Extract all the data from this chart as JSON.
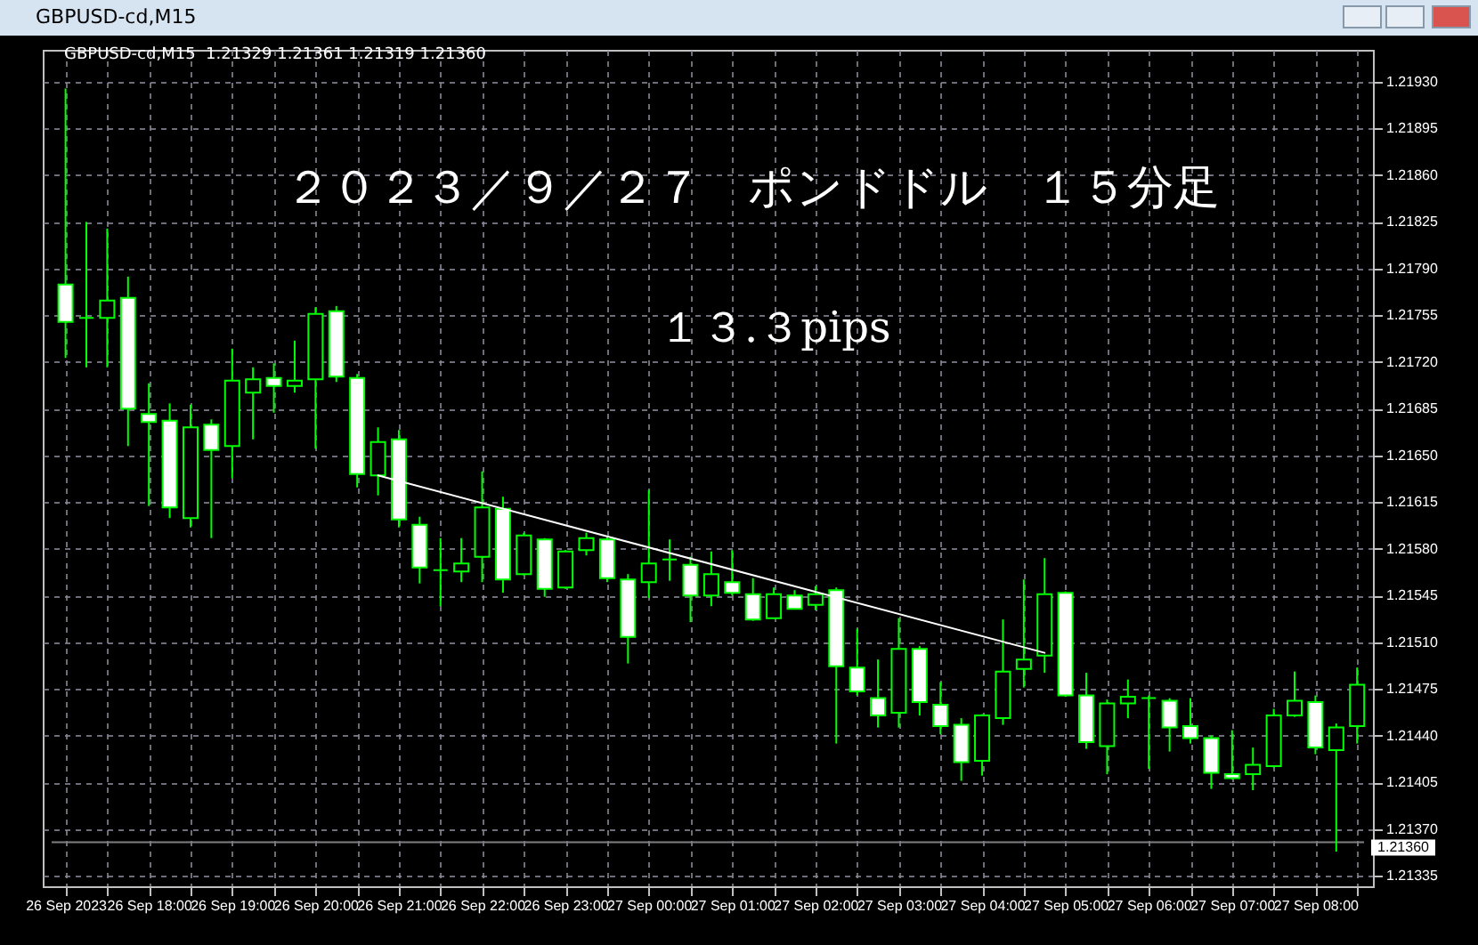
{
  "chart_data": {
    "type": "candlestick",
    "title": "GBPUSD-cd,M15",
    "annotations": [
      "GBPUSD-cd,M15  1.21329 1.21361 1.21319 1.21360",
      "２０２３／９／２７　ポンドドル　１５分足",
      "１３.３pips"
    ],
    "x": [
      "2023-09-26T17:00",
      "2023-09-26T17:15",
      "2023-09-26T17:30",
      "2023-09-26T17:45",
      "2023-09-26T18:00",
      "2023-09-26T18:15",
      "2023-09-26T18:30",
      "2023-09-26T18:45",
      "2023-09-26T19:00",
      "2023-09-26T19:15",
      "2023-09-26T19:30",
      "2023-09-26T19:45",
      "2023-09-26T20:00",
      "2023-09-26T20:15",
      "2023-09-26T20:30",
      "2023-09-26T20:45",
      "2023-09-26T21:00",
      "2023-09-26T21:15",
      "2023-09-26T21:30",
      "2023-09-26T21:45",
      "2023-09-26T22:00",
      "2023-09-26T22:15",
      "2023-09-26T22:30",
      "2023-09-26T22:45",
      "2023-09-26T23:00",
      "2023-09-26T23:15",
      "2023-09-26T23:30",
      "2023-09-26T23:45",
      "2023-09-27T00:00",
      "2023-09-27T00:15",
      "2023-09-27T00:30",
      "2023-09-27T00:45",
      "2023-09-27T01:00",
      "2023-09-27T01:15",
      "2023-09-27T01:30",
      "2023-09-27T01:45",
      "2023-09-27T02:00",
      "2023-09-27T02:15",
      "2023-09-27T02:30",
      "2023-09-27T02:45",
      "2023-09-27T03:00",
      "2023-09-27T03:15",
      "2023-09-27T03:30",
      "2023-09-27T03:45",
      "2023-09-27T04:00",
      "2023-09-27T04:15",
      "2023-09-27T04:30",
      "2023-09-27T04:45",
      "2023-09-27T05:00",
      "2023-09-27T05:15",
      "2023-09-27T05:30",
      "2023-09-27T05:45",
      "2023-09-27T06:00",
      "2023-09-27T06:15",
      "2023-09-27T06:30",
      "2023-09-27T06:45",
      "2023-09-27T07:00",
      "2023-09-27T07:15",
      "2023-09-27T07:30",
      "2023-09-27T07:45",
      "2023-09-27T08:00",
      "2023-09-27T08:15",
      "2023-09-27T08:30"
    ],
    "series": [
      {
        "type": "candlestick",
        "color": "#00ff00",
        "ohlc": [
          [
            1.21778,
            1.21925,
            1.21723,
            1.2175
          ],
          [
            1.21753,
            1.21825,
            1.21716,
            1.21753
          ],
          [
            1.21753,
            1.2182,
            1.21716,
            1.21766
          ],
          [
            1.21768,
            1.21784,
            1.21657,
            1.21685
          ],
          [
            1.21681,
            1.21704,
            1.21612,
            1.21675
          ],
          [
            1.21676,
            1.21689,
            1.21603,
            1.21611
          ],
          [
            1.21603,
            1.21688,
            1.21596,
            1.21671
          ],
          [
            1.21673,
            1.21677,
            1.21588,
            1.21654
          ],
          [
            1.21657,
            1.2173,
            1.21633,
            1.21706
          ],
          [
            1.21697,
            1.21716,
            1.21662,
            1.21707
          ],
          [
            1.21708,
            1.21719,
            1.21682,
            1.21702
          ],
          [
            1.21702,
            1.21736,
            1.21697,
            1.21706
          ],
          [
            1.21707,
            1.21761,
            1.21655,
            1.21756
          ],
          [
            1.21758,
            1.21762,
            1.21705,
            1.21709
          ],
          [
            1.21708,
            1.21711,
            1.21626,
            1.21636
          ],
          [
            1.21635,
            1.21671,
            1.2162,
            1.2166
          ],
          [
            1.21662,
            1.21669,
            1.21596,
            1.21602
          ],
          [
            1.21598,
            1.21604,
            1.21554,
            1.21566
          ],
          [
            1.21564,
            1.21588,
            1.21537,
            1.21564
          ],
          [
            1.21563,
            1.21588,
            1.21555,
            1.21569
          ],
          [
            1.21574,
            1.21638,
            1.21555,
            1.21611
          ],
          [
            1.2161,
            1.21619,
            1.21547,
            1.21557
          ],
          [
            1.21561,
            1.21592,
            1.2156,
            1.2159
          ],
          [
            1.21587,
            1.21588,
            1.21544,
            1.2155
          ],
          [
            1.21551,
            1.21579,
            1.2155,
            1.21578
          ],
          [
            1.21579,
            1.21592,
            1.21575,
            1.21588
          ],
          [
            1.21587,
            1.21589,
            1.21555,
            1.21558
          ],
          [
            1.21557,
            1.21561,
            1.21494,
            1.21514
          ],
          [
            1.21555,
            1.21624,
            1.21543,
            1.21569
          ],
          [
            1.21572,
            1.21587,
            1.21556,
            1.21572
          ],
          [
            1.21568,
            1.21574,
            1.21525,
            1.21545
          ],
          [
            1.21545,
            1.21578,
            1.21537,
            1.21561
          ],
          [
            1.21555,
            1.21579,
            1.21545,
            1.21547
          ],
          [
            1.21546,
            1.21558,
            1.21526,
            1.21527
          ],
          [
            1.21528,
            1.21551,
            1.21528,
            1.21546
          ],
          [
            1.21545,
            1.21549,
            1.21535,
            1.21535
          ],
          [
            1.21538,
            1.21552,
            1.21534,
            1.21546
          ],
          [
            1.21549,
            1.21551,
            1.21434,
            1.21492
          ],
          [
            1.21491,
            1.2152,
            1.2147,
            1.21473
          ],
          [
            1.21468,
            1.21497,
            1.21446,
            1.21455
          ],
          [
            1.21457,
            1.21528,
            1.21446,
            1.21505
          ],
          [
            1.21505,
            1.21507,
            1.21455,
            1.21465
          ],
          [
            1.21463,
            1.2148,
            1.21441,
            1.21447
          ],
          [
            1.21448,
            1.21453,
            1.21406,
            1.2142
          ],
          [
            1.21421,
            1.21456,
            1.2141,
            1.21455
          ],
          [
            1.21453,
            1.21527,
            1.21448,
            1.21488
          ],
          [
            1.2149,
            1.21557,
            1.21476,
            1.21497
          ],
          [
            1.215,
            1.21573,
            1.21487,
            1.21546
          ],
          [
            1.21547,
            1.21548,
            1.21469,
            1.2147
          ],
          [
            1.2147,
            1.21487,
            1.2143,
            1.21435
          ],
          [
            1.21432,
            1.21467,
            1.21411,
            1.21464
          ],
          [
            1.21464,
            1.21482,
            1.21453,
            1.21469
          ],
          [
            1.21468,
            1.2147,
            1.21415,
            1.21468
          ],
          [
            1.21466,
            1.21468,
            1.21428,
            1.21446
          ],
          [
            1.21447,
            1.21468,
            1.21434,
            1.21438
          ],
          [
            1.21438,
            1.2144,
            1.214,
            1.21412
          ],
          [
            1.21411,
            1.21444,
            1.21407,
            1.21408
          ],
          [
            1.21411,
            1.21431,
            1.21399,
            1.21418
          ],
          [
            1.21417,
            1.2146,
            1.21416,
            1.21455
          ],
          [
            1.21455,
            1.21488,
            1.21454,
            1.21466
          ],
          [
            1.21465,
            1.2147,
            1.21426,
            1.21431
          ],
          [
            1.21429,
            1.21449,
            1.21353,
            1.21446
          ],
          [
            1.21447,
            1.21491,
            1.21434,
            1.21478
          ]
        ],
        "colors": [
          "#ffffff",
          "#00ff00",
          "#000000",
          "#ffffff",
          "#ffffff",
          "#ffffff",
          "#000000",
          "#ffffff",
          "#000000",
          "#000000",
          "#ffffff",
          "#000000",
          "#000000",
          "#ffffff",
          "#ffffff",
          "#000000",
          "#ffffff",
          "#ffffff",
          "#00ff00",
          "#000000",
          "#000000",
          "#ffffff",
          "#000000",
          "#ffffff",
          "#000000",
          "#000000",
          "#ffffff",
          "#ffffff",
          "#000000",
          "#00ff00",
          "#ffffff",
          "#000000",
          "#ffffff",
          "#ffffff",
          "#000000",
          "#ffffff",
          "#000000",
          "#ffffff",
          "#ffffff",
          "#ffffff",
          "#000000",
          "#ffffff",
          "#ffffff",
          "#ffffff",
          "#000000",
          "#000000",
          "#000000",
          "#000000",
          "#ffffff",
          "#ffffff",
          "#000000",
          "#000000",
          "#00ff00",
          "#ffffff",
          "#ffffff",
          "#ffffff",
          "#ffffff",
          "#000000",
          "#000000",
          "#000000",
          "#ffffff",
          "#000000",
          "#000000"
        ]
      },
      {
        "type": "line",
        "color": "#ffffff",
        "x": [
          "2023-09-26T20:45",
          "2023-09-27T04:45"
        ],
        "values": [
          1.21635,
          1.21502
        ]
      }
    ],
    "xlim": [
      "2023-09-26T16:50",
      "2023-09-27T08:35"
    ],
    "ylim": [
      1.21327,
      1.21954
    ],
    "xticks": [
      {
        "value": "2023-09-26T17:00",
        "label": "26 Sep 2023"
      },
      {
        "value": "2023-09-26T17:30",
        "label": null
      },
      {
        "value": "2023-09-26T18:00",
        "label": "26 Sep 18:00"
      },
      {
        "value": "2023-09-26T18:30",
        "label": null
      },
      {
        "value": "2023-09-26T19:00",
        "label": "26 Sep 19:00"
      },
      {
        "value": "2023-09-26T19:30",
        "label": null
      },
      {
        "value": "2023-09-26T20:00",
        "label": "26 Sep 20:00"
      },
      {
        "value": "2023-09-26T20:30",
        "label": null
      },
      {
        "value": "2023-09-26T21:00",
        "label": "26 Sep 21:00"
      },
      {
        "value": "2023-09-26T21:30",
        "label": null
      },
      {
        "value": "2023-09-26T22:00",
        "label": "26 Sep 22:00"
      },
      {
        "value": "2023-09-26T22:30",
        "label": null
      },
      {
        "value": "2023-09-26T23:00",
        "label": "26 Sep 23:00"
      },
      {
        "value": "2023-09-26T23:30",
        "label": null
      },
      {
        "value": "2023-09-27T00:00",
        "label": "27 Sep 00:00"
      },
      {
        "value": "2023-09-27T00:30",
        "label": null
      },
      {
        "value": "2023-09-27T01:00",
        "label": "27 Sep 01:00"
      },
      {
        "value": "2023-09-27T01:30",
        "label": null
      },
      {
        "value": "2023-09-27T02:00",
        "label": "27 Sep 02:00"
      },
      {
        "value": "2023-09-27T02:30",
        "label": null
      },
      {
        "value": "2023-09-27T03:00",
        "label": "27 Sep 03:00"
      },
      {
        "value": "2023-09-27T03:30",
        "label": null
      },
      {
        "value": "2023-09-27T04:00",
        "label": "27 Sep 04:00"
      },
      {
        "value": "2023-09-27T04:30",
        "label": null
      },
      {
        "value": "2023-09-27T05:00",
        "label": "27 Sep 05:00"
      },
      {
        "value": "2023-09-27T05:30",
        "label": null
      },
      {
        "value": "2023-09-27T06:00",
        "label": "27 Sep 06:00"
      },
      {
        "value": "2023-09-27T06:30",
        "label": null
      },
      {
        "value": "2023-09-27T07:00",
        "label": "27 Sep 07:00"
      },
      {
        "value": "2023-09-27T07:30",
        "label": null
      },
      {
        "value": "2023-09-27T08:00",
        "label": "27 Sep 08:00"
      },
      {
        "value": "2023-09-27T08:30",
        "label": null
      }
    ],
    "yticks": [
      {
        "value": 1.21335,
        "label": "1.21335"
      },
      {
        "value": 1.2137,
        "label": "1.21370"
      },
      {
        "value": 1.21405,
        "label": "1.21405"
      },
      {
        "value": 1.2144,
        "label": "1.21440"
      },
      {
        "value": 1.21475,
        "label": "1.21475"
      },
      {
        "value": 1.2151,
        "label": "1.21510"
      },
      {
        "value": 1.21545,
        "label": "1.21545"
      },
      {
        "value": 1.2158,
        "label": "1.21580"
      },
      {
        "value": 1.21615,
        "label": "1.21615"
      },
      {
        "value": 1.2165,
        "label": "1.21650"
      },
      {
        "value": 1.21685,
        "label": "1.21685"
      },
      {
        "value": 1.2172,
        "label": "1.21720"
      },
      {
        "value": 1.21755,
        "label": "1.21755"
      },
      {
        "value": 1.2179,
        "label": "1.21790"
      },
      {
        "value": 1.21825,
        "label": "1.21825"
      },
      {
        "value": 1.2186,
        "label": "1.21860"
      },
      {
        "value": 1.21895,
        "label": "1.21895"
      },
      {
        "value": 1.2193,
        "label": "1.21930"
      }
    ],
    "grid": true,
    "ref_lines": [
      {
        "axis": "y",
        "value": 1.2136,
        "label": "1.21360",
        "color": "#808080"
      }
    ]
  }
}
